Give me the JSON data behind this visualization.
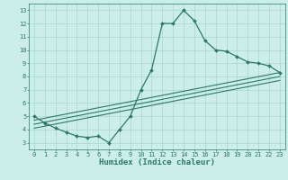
{
  "xlabel": "Humidex (Indice chaleur)",
  "ylabel": "",
  "bg_color": "#cceee8",
  "grid_color": "#aad4cc",
  "line_color": "#2a7a64",
  "xlim": [
    -0.5,
    23.5
  ],
  "ylim": [
    2.5,
    13.5
  ],
  "xticks": [
    0,
    1,
    2,
    3,
    4,
    5,
    6,
    7,
    8,
    9,
    10,
    11,
    12,
    13,
    14,
    15,
    16,
    17,
    18,
    19,
    20,
    21,
    22,
    23
  ],
  "yticks": [
    3,
    4,
    5,
    6,
    7,
    8,
    9,
    10,
    11,
    12,
    13
  ],
  "main_x": [
    0,
    1,
    2,
    3,
    4,
    5,
    6,
    7,
    8,
    9,
    10,
    11,
    12,
    13,
    14,
    15,
    16,
    17,
    18,
    19,
    20,
    21,
    22,
    23
  ],
  "main_y": [
    5.0,
    4.5,
    4.1,
    3.8,
    3.5,
    3.4,
    3.5,
    3.0,
    4.0,
    5.0,
    7.0,
    8.5,
    12.0,
    12.0,
    13.0,
    12.2,
    10.7,
    10.0,
    9.9,
    9.5,
    9.1,
    9.0,
    8.8,
    8.3
  ],
  "reg_lines": [
    {
      "x0": 0,
      "y0": 4.1,
      "x1": 23,
      "y1": 7.7
    },
    {
      "x0": 0,
      "y0": 4.4,
      "x1": 23,
      "y1": 8.0
    },
    {
      "x0": 0,
      "y0": 4.7,
      "x1": 23,
      "y1": 8.3
    }
  ],
  "tick_fontsize": 5.0,
  "xlabel_fontsize": 6.5,
  "marker_size": 2.0,
  "line_width": 0.9
}
